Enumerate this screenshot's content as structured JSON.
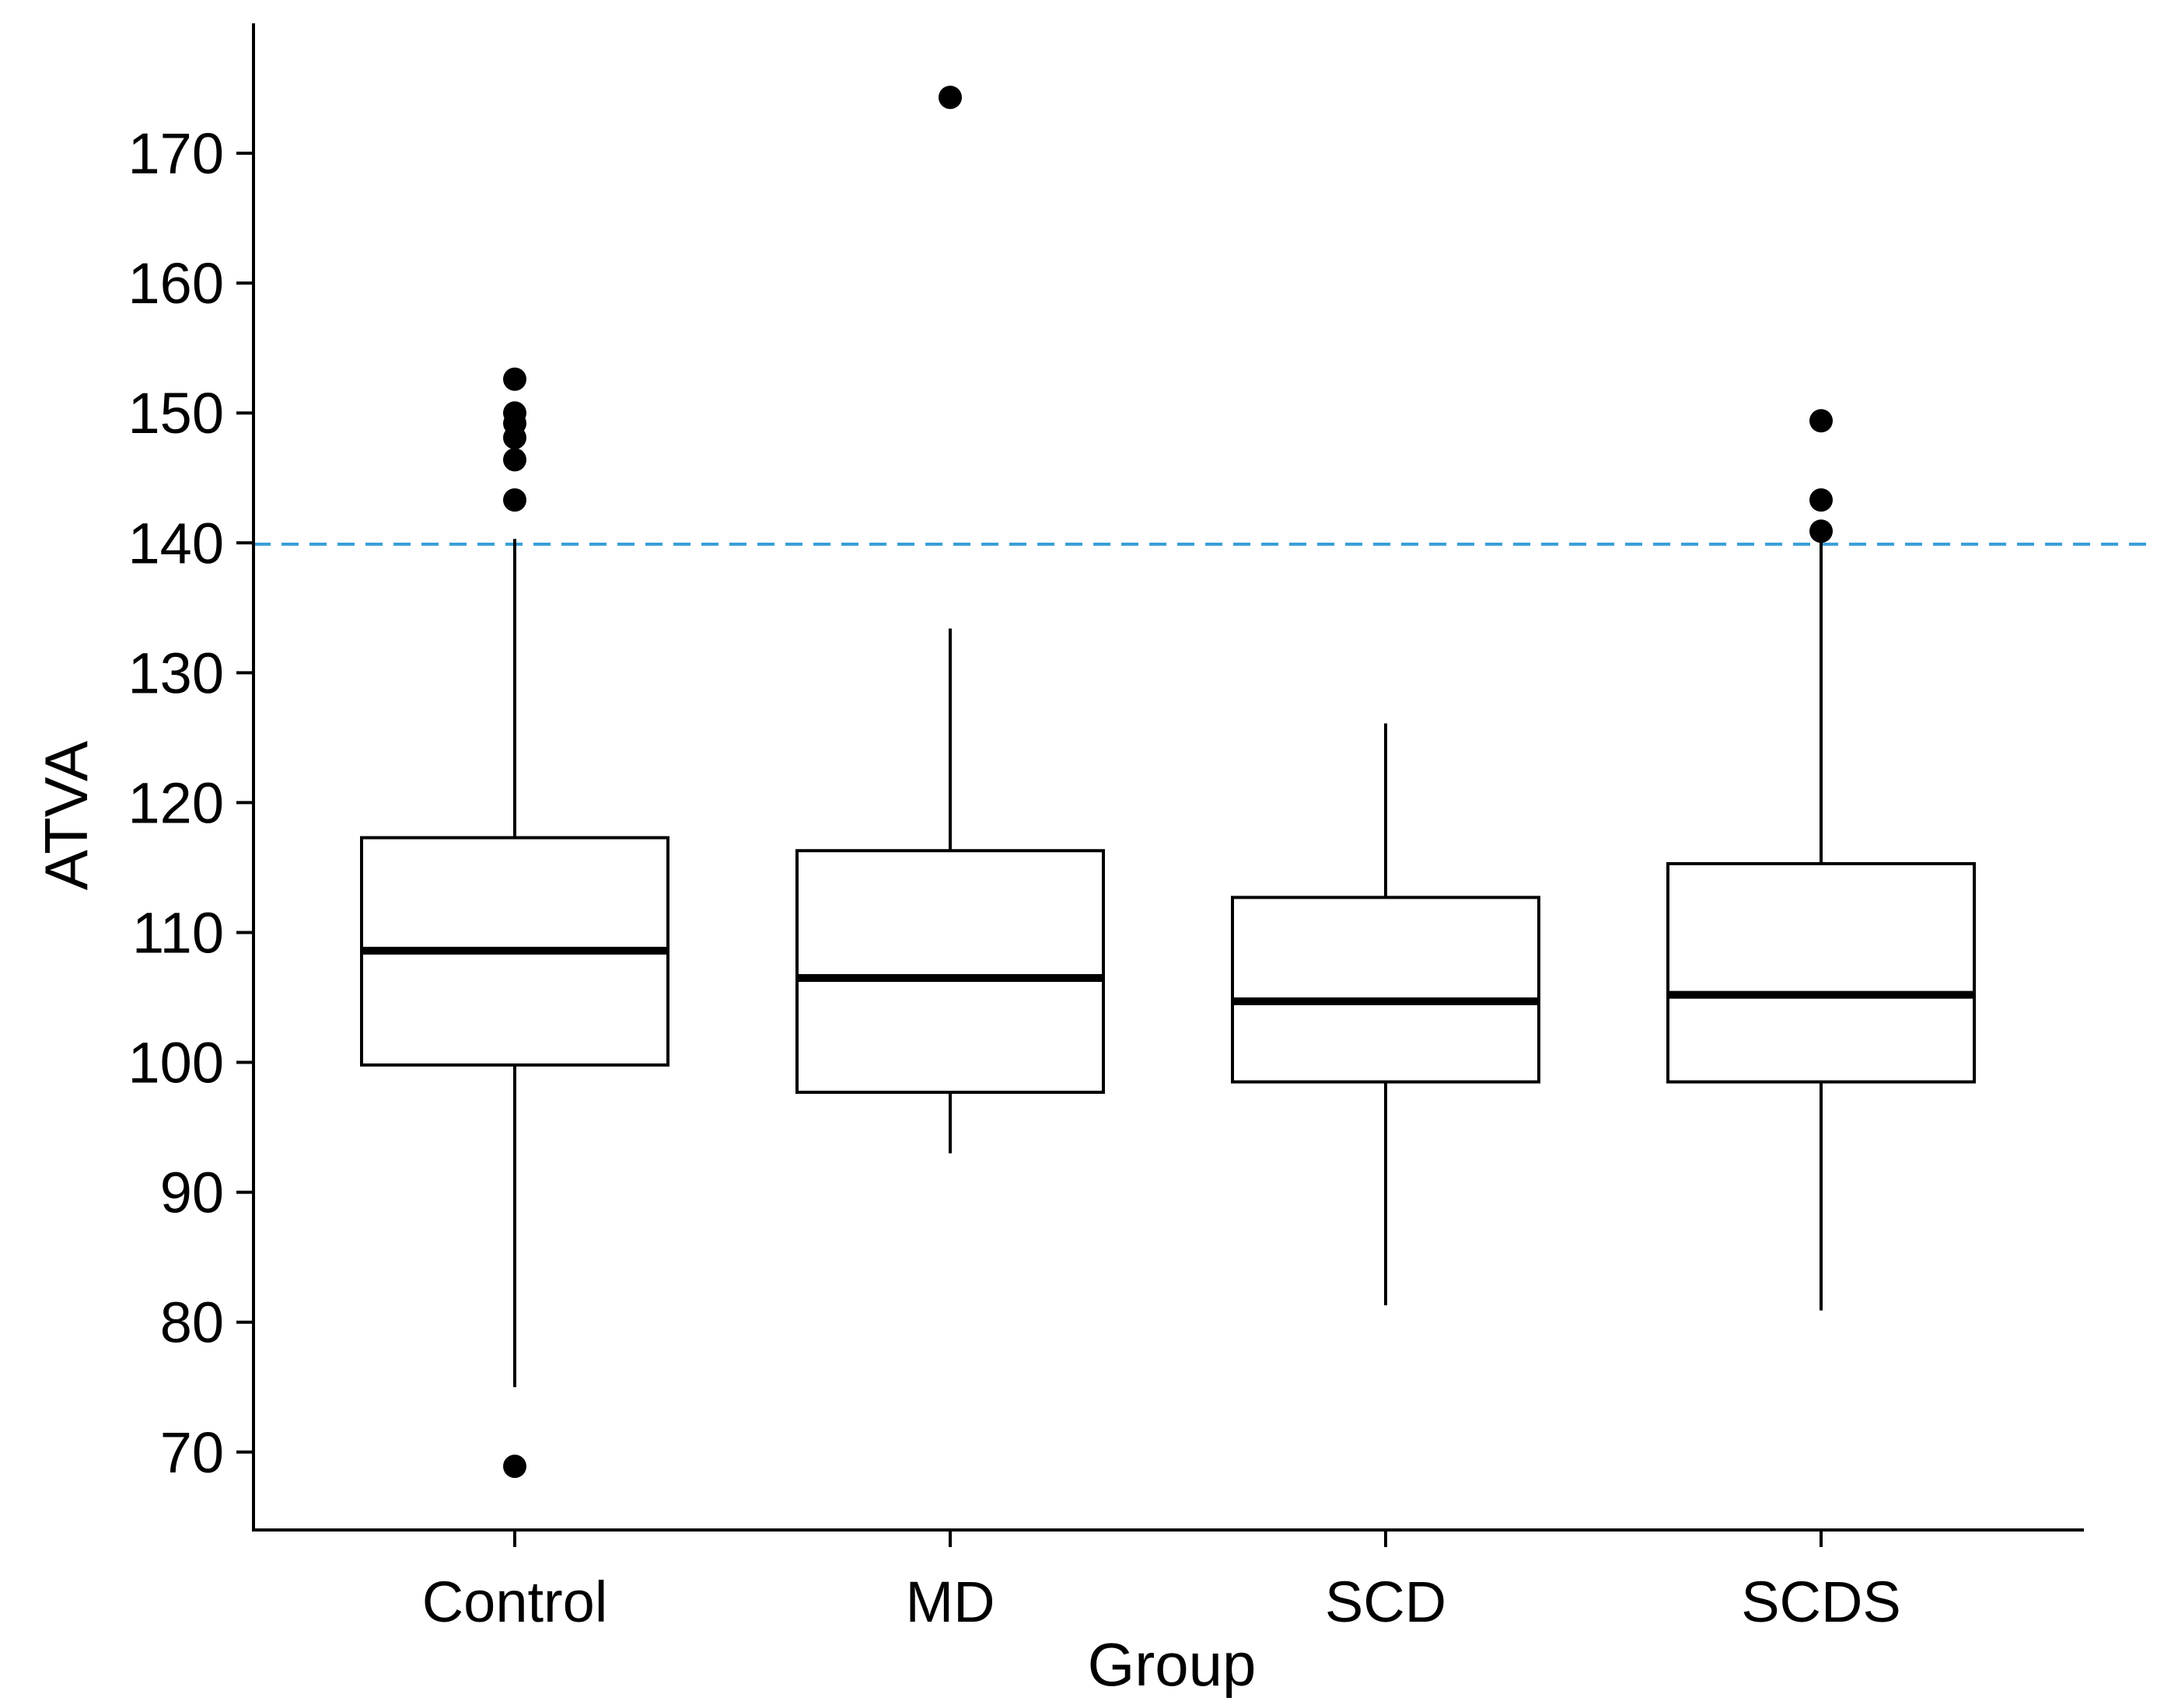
{
  "chart_data": {
    "type": "boxplot",
    "title": "",
    "xlabel": "Group",
    "ylabel": "ATVA",
    "ylim": [
      64,
      180
    ],
    "yticks": [
      70,
      80,
      90,
      100,
      110,
      120,
      130,
      140,
      150,
      160,
      170
    ],
    "categories": [
      "Control",
      "MD",
      "SCD",
      "SCDS"
    ],
    "boxes": [
      {
        "name": "Control",
        "whisker_low": 75,
        "q1": 99.8,
        "median": 108.6,
        "q3": 117.3,
        "whisker_high": 140.3,
        "outliers": [
          68.9,
          143.3,
          146.4,
          148.1,
          149.2,
          150.0,
          152.6
        ]
      },
      {
        "name": "MD",
        "whisker_low": 93,
        "q1": 97.7,
        "median": 106.5,
        "q3": 116.3,
        "whisker_high": 133.4,
        "outliers": [
          174.3
        ]
      },
      {
        "name": "SCD",
        "whisker_low": 81.3,
        "q1": 98.5,
        "median": 104.7,
        "q3": 112.7,
        "whisker_high": 126.1,
        "outliers": []
      },
      {
        "name": "SCDS",
        "whisker_low": 80.9,
        "q1": 98.5,
        "median": 105.2,
        "q3": 115.3,
        "whisker_high": 140.4,
        "outliers": [
          140.9,
          143.3,
          149.4
        ]
      }
    ],
    "reference_line": {
      "y": 139.9,
      "style": "dashed",
      "color": "#3a9fd8"
    },
    "grid": false,
    "legend": "none"
  }
}
